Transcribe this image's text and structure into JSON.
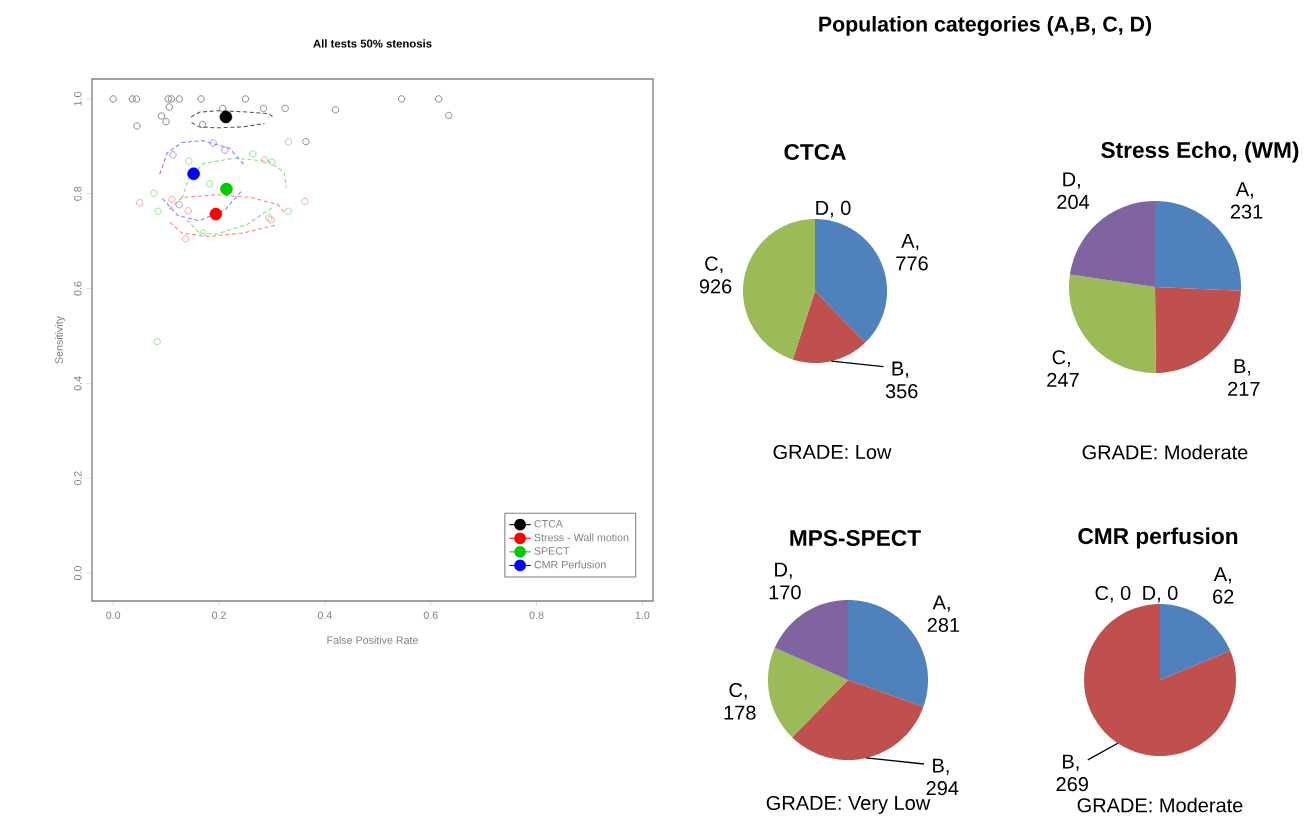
{
  "chart_data": [
    {
      "type": "scatter",
      "title": "All tests 50% stenosis",
      "xlabel": "False Positive Rate",
      "ylabel": "Sensitivity",
      "xlim": [
        -0.04,
        1.02
      ],
      "ylim": [
        -0.059,
        1.042
      ],
      "xticks": [
        {
          "value": 0,
          "label": "0.0"
        },
        0.2,
        0.4,
        0.6,
        0.8,
        {
          "value": 1,
          "label": "1.0"
        }
      ],
      "yticks": [
        {
          "value": 0,
          "label": "0.0"
        },
        0.2,
        0.4,
        0.6,
        0.8,
        {
          "value": 1,
          "label": "1.0"
        }
      ],
      "legend": "bottom right",
      "series": [
        {
          "type": "scatter",
          "marker": "circle",
          "color": "#7f7f7f",
          "x": [
            0,
            0.036,
            0.044,
            0.104,
            0.11,
            0.125,
            0.166,
            0.25,
            0.545,
            0.615,
            0.045,
            0.091,
            0.1,
            0.106,
            0.169,
            0.207,
            0.284,
            0.325,
            0.42,
            0.634,
            0.364
          ],
          "values": [
            1.0,
            1.0,
            1.0,
            1.0,
            1.0,
            1.0,
            1.0,
            1.0,
            1.0,
            1.0,
            0.943,
            0.964,
            0.952,
            0.983,
            0.946,
            0.98,
            0.98,
            0.98,
            0.977,
            0.965,
            0.91
          ]
        },
        {
          "type": "scatter",
          "marker": "circle",
          "color": "#ff9999",
          "x": [
            0.05,
            0.111,
            0.142,
            0.286,
            0.362,
            0.137,
            0.298
          ],
          "values": [
            0.781,
            0.788,
            0.764,
            0.871,
            0.784,
            0.705,
            0.745
          ]
        },
        {
          "type": "scatter",
          "marker": "circle",
          "color": "#8fdf8f",
          "x": [
            0.331,
            0.264,
            0.143,
            0.3,
            0.182,
            0.077,
            0.085,
            0.294,
            0.331,
            0.17,
            0.083
          ],
          "values": [
            0.909,
            0.884,
            0.869,
            0.867,
            0.821,
            0.801,
            0.763,
            0.749,
            0.763,
            0.717,
            0.488
          ]
        },
        {
          "type": "scatter",
          "marker": "circle",
          "color": "#9999ff",
          "x": [
            0.125,
            0.189,
            0.211,
            0.113
          ],
          "values": [
            0.777,
            0.907,
            0.892,
            0.882
          ]
        },
        {
          "type": "line",
          "marker": "none",
          "line_style": "dashed",
          "color": "#555555",
          "x": [
            0.147,
            0.163,
            0.196,
            0.245,
            0.294,
            0.302
          ],
          "values": [
            0.962,
            0.972,
            0.975,
            0.973,
            0.969,
            0.962
          ]
        },
        {
          "type": "line",
          "marker": "none",
          "line_style": "dashed",
          "color": "#555555",
          "x": [
            0.148,
            0.163,
            0.196,
            0.245,
            0.286
          ],
          "values": [
            0.95,
            0.941,
            0.939,
            0.941,
            0.948
          ]
        },
        {
          "type": "line",
          "marker": "none",
          "line_style": "dashed",
          "color": "#ff8080",
          "x": [
            0.106,
            0.13,
            0.196,
            0.261,
            0.311,
            0.325
          ],
          "values": [
            0.767,
            0.792,
            0.798,
            0.792,
            0.777,
            0.758
          ]
        },
        {
          "type": "line",
          "marker": "none",
          "line_style": "dashed",
          "color": "#ff8080",
          "x": [
            0.107,
            0.13,
            0.18,
            0.245,
            0.311
          ],
          "values": [
            0.74,
            0.717,
            0.71,
            0.717,
            0.735
          ]
        },
        {
          "type": "line",
          "marker": "none",
          "line_style": "dashed",
          "color": "#80e080",
          "x": [
            0.13,
            0.143,
            0.171,
            0.229,
            0.294,
            0.323,
            0.327
          ],
          "values": [
            0.79,
            0.832,
            0.864,
            0.875,
            0.868,
            0.845,
            0.813
          ]
        },
        {
          "type": "line",
          "marker": "none",
          "line_style": "dashed",
          "color": "#80e080",
          "x": [
            0.139,
            0.163,
            0.196,
            0.253,
            0.302
          ],
          "values": [
            0.745,
            0.717,
            0.715,
            0.735,
            0.772
          ]
        },
        {
          "type": "line",
          "marker": "none",
          "line_style": "dashed",
          "color": "#8080ff",
          "x": [
            0.088,
            0.102,
            0.13,
            0.167,
            0.22,
            0.249
          ],
          "values": [
            0.841,
            0.886,
            0.908,
            0.912,
            0.896,
            0.859
          ]
        },
        {
          "type": "line",
          "marker": "none",
          "line_style": "dashed",
          "color": "#8080ff",
          "x": [
            0.093,
            0.122,
            0.163,
            0.212,
            0.245
          ],
          "values": [
            0.79,
            0.754,
            0.743,
            0.767,
            0.809
          ]
        },
        {
          "type": "scatter",
          "marker": "circle",
          "name": "CTCA",
          "color": "#000000",
          "x": [
            0.213
          ],
          "values": [
            0.962
          ]
        },
        {
          "type": "scatter",
          "marker": "circle",
          "name": "Stress - Wall motion",
          "color": "#ff0000",
          "x": [
            0.194
          ],
          "values": [
            0.757
          ]
        },
        {
          "type": "scatter",
          "marker": "circle",
          "name": "SPECT",
          "color": "#00cc00",
          "x": [
            0.214
          ],
          "values": [
            0.81
          ]
        },
        {
          "type": "scatter",
          "marker": "circle",
          "name": "CMR Perfusion",
          "color": "#0000ff",
          "x": [
            0.152
          ],
          "values": [
            0.842
          ]
        }
      ]
    },
    {
      "type": "other",
      "title": "Population  categories (A,B, C, D)"
    },
    {
      "type": "pie",
      "title": "CTCA",
      "annotations": [
        "GRADE: Low"
      ],
      "categories": [
        null,
        null,
        null,
        null
      ],
      "values": [
        776,
        356,
        926,
        0
      ],
      "value_labels": [
        "A, 776",
        "B, 356",
        "C, 926",
        "D, 0"
      ],
      "colors": [
        "#4f81bd",
        "#c0504d",
        "#9bbb59",
        "#8064a2"
      ]
    },
    {
      "type": "pie",
      "title": "Stress Echo, (WM)",
      "annotations": [
        "GRADE: Moderate"
      ],
      "categories": [
        null,
        null,
        null,
        null
      ],
      "values": [
        231,
        217,
        247,
        204
      ],
      "value_labels": [
        "A, 231",
        "B, 217",
        "C, 247",
        "D, 204"
      ],
      "colors": [
        "#4f81bd",
        "#c0504d",
        "#9bbb59",
        "#8064a2"
      ]
    },
    {
      "type": "pie",
      "title": "MPS-SPECT",
      "annotations": [
        "GRADE: Very Low"
      ],
      "categories": [
        null,
        null,
        null,
        null
      ],
      "values": [
        281,
        294,
        178,
        170
      ],
      "value_labels": [
        "A, 281",
        "B, 294",
        "C, 178",
        "D, 170"
      ],
      "colors": [
        "#4f81bd",
        "#c0504d",
        "#9bbb59",
        "#8064a2"
      ]
    },
    {
      "type": "pie",
      "title": "CMR perfusion",
      "annotations": [
        "GRADE: Moderate"
      ],
      "categories": [
        null,
        null,
        null,
        null
      ],
      "values": [
        62,
        269,
        0,
        0
      ],
      "value_labels": [
        "A, 62",
        "B, 269",
        "C, 0",
        "D, 0"
      ],
      "colors": [
        "#4f81bd",
        "#c0504d",
        "#9bbb59",
        "#8064a2"
      ]
    }
  ]
}
